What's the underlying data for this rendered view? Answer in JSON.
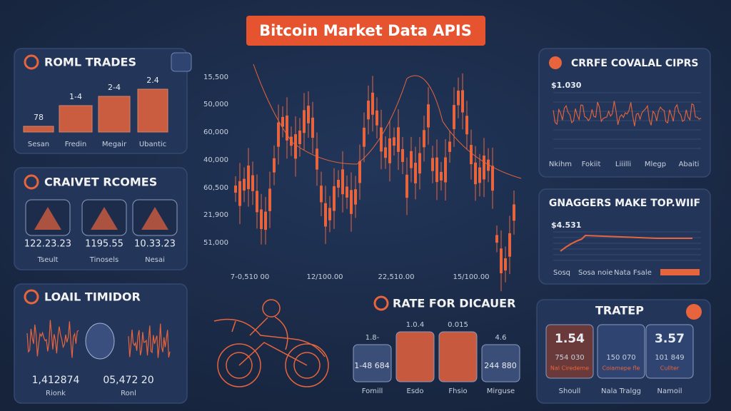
{
  "header": {
    "title": "Bitcoin Market Data APIS"
  },
  "panels": {
    "trades": {
      "title": "ROML TRADES",
      "bar_labels": [
        "78",
        "1-4",
        "2-4",
        "2.4"
      ],
      "categories": [
        "Sesan",
        "Fredin",
        "Megair",
        "Ubantic"
      ]
    },
    "incomes": {
      "title": "CRAIVET RCOMES",
      "cards": [
        {
          "value": "122.23.23",
          "label": "Tseult"
        },
        {
          "value": "1195.55",
          "label": "Tinosels"
        },
        {
          "value": "10.33.23",
          "label": "Nesai"
        }
      ]
    },
    "monitor": {
      "title": "LOAIL TIMIDOR",
      "values": [
        "1,412874",
        "05,472 20"
      ],
      "labels": [
        "Rionk",
        "Ronl"
      ]
    },
    "main_chart": {
      "y_labels": [
        "15,500",
        "50,000",
        "60,000",
        "40,000",
        "60,500",
        "21,900",
        "51,000"
      ],
      "x_labels": [
        "7-0,510 00",
        "12/100.00",
        "22,510.00",
        "15/100.00"
      ]
    },
    "rate": {
      "title": "RATE FOR DICAUER",
      "top_labels": [
        "1.8-",
        "1.0.4",
        "0.015",
        "4.6"
      ],
      "inner_labels": [
        "1-48 684",
        "244 880"
      ],
      "categories": [
        "Fomill",
        "Esdo",
        "Fhsio",
        "Mirguse"
      ]
    },
    "prices": {
      "title": "CRRFE COVALAL CIPRS",
      "value": "$1.030",
      "categories": [
        "Nkihm",
        "Fokiit",
        "Liiilli",
        "Mlegp",
        "Abaiti"
      ]
    },
    "makers": {
      "title": "GNAGGERS MAKE TOP.WIIF",
      "value": "$4.531",
      "categories": [
        "Sosq",
        "Sosa noie",
        "Nata Fsale"
      ]
    },
    "trader": {
      "title": "TRATEP",
      "cards": [
        {
          "value": "1.54",
          "sub": "754 030",
          "note": "Nal Ciredeme"
        },
        {
          "value": "",
          "sub": "150 070",
          "note": "Coiamepe fle"
        },
        {
          "value": "3.57",
          "sub": "101 849",
          "note": "Cullter"
        }
      ],
      "categories": [
        "Shoull",
        "Nala Tralgg",
        "Namoil"
      ]
    }
  }
}
